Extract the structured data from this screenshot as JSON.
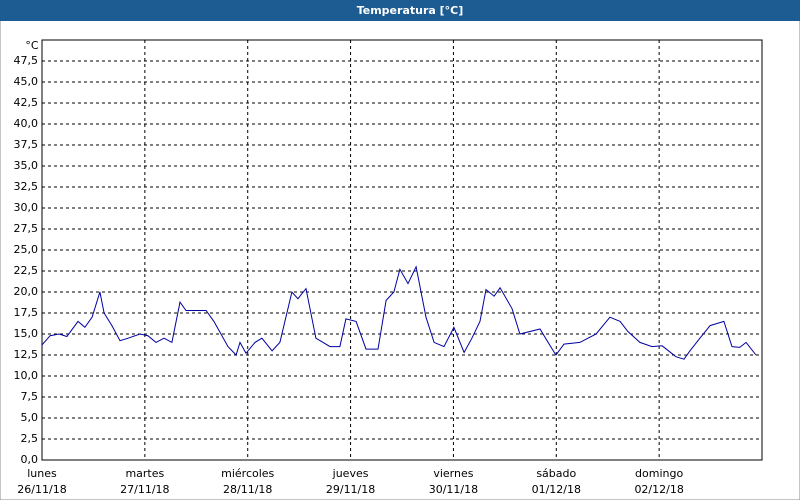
{
  "chart_data": {
    "type": "line",
    "title": "Temperatura [°C]",
    "y_label": "°C",
    "color": "#0000a0",
    "grid": true,
    "xlim": [
      0,
      168
    ],
    "ylim": [
      0,
      50
    ],
    "xticks": [
      {
        "value": 0,
        "label": "lunes",
        "date": "26/11/18"
      },
      {
        "value": 24,
        "label": "martes",
        "date": "27/11/18"
      },
      {
        "value": 48,
        "label": "miércoles",
        "date": "28/11/18"
      },
      {
        "value": 72,
        "label": "jueves",
        "date": "29/11/18"
      },
      {
        "value": 96,
        "label": "viernes",
        "date": "30/11/18"
      },
      {
        "value": 120,
        "label": "sábado",
        "date": "01/12/18"
      },
      {
        "value": 144,
        "label": "domingo",
        "date": "02/12/18"
      }
    ],
    "yticks": [
      {
        "value": 0,
        "label": "0,0"
      },
      {
        "value": 2.5,
        "label": "2,5"
      },
      {
        "value": 5,
        "label": "5,0"
      },
      {
        "value": 7.5,
        "label": "7,5"
      },
      {
        "value": 10,
        "label": "10,0"
      },
      {
        "value": 12.5,
        "label": "12,5"
      },
      {
        "value": 15,
        "label": "15,0"
      },
      {
        "value": 17.5,
        "label": "17,5"
      },
      {
        "value": 20,
        "label": "20,0"
      },
      {
        "value": 22.5,
        "label": "22,5"
      },
      {
        "value": 25,
        "label": "25,0"
      },
      {
        "value": 27.5,
        "label": "27,5"
      },
      {
        "value": 30,
        "label": "30,0"
      },
      {
        "value": 32.5,
        "label": "32,5"
      },
      {
        "value": 35,
        "label": "35,0"
      },
      {
        "value": 37.5,
        "label": "37,5"
      },
      {
        "value": 40,
        "label": "40,0"
      },
      {
        "value": 42.5,
        "label": "42,5"
      },
      {
        "value": 45,
        "label": "45,0"
      },
      {
        "value": 47.5,
        "label": "47,5"
      }
    ],
    "x": [
      0,
      1.9,
      4,
      5.8,
      8.4,
      10,
      11.7,
      13.5,
      14.5,
      16.3,
      18.2,
      20.1,
      22.9,
      24.7,
      26.6,
      28.5,
      30.3,
      32.2,
      33.6,
      38.3,
      40.1,
      43.4,
      45.3,
      46.2,
      47.6,
      49.7,
      51.3,
      53.7,
      55.5,
      58.3,
      59.7,
      61.6,
      63.9,
      67.2,
      69.5,
      70.9,
      73.3,
      75.6,
      78.4,
      80.3,
      82.1,
      83.5,
      85.4,
      87.3,
      89.6,
      91.5,
      93.8,
      96.1,
      98.5,
      100.3,
      102.2,
      103.6,
      105.5,
      106.9,
      109.7,
      111.5,
      116.2,
      118.1,
      119.9,
      121.8,
      125.5,
      129.3,
      132.5,
      134.9,
      136.7,
      139.5,
      142.3,
      144.7,
      147.9,
      149.8,
      151.2,
      153.5,
      155.9,
      159.1,
      161,
      162.8,
      164.3,
      166.6
    ],
    "values": [
      13.7,
      14.8,
      15,
      14.7,
      16.5,
      15.8,
      17,
      20,
      17.5,
      16,
      14.2,
      14.5,
      15,
      14.8,
      14,
      14.5,
      14,
      18.8,
      17.8,
      17.8,
      16.5,
      13.5,
      12.5,
      14,
      12.7,
      14,
      14.5,
      13,
      14,
      20,
      19.2,
      20.4,
      14.5,
      13.5,
      13.5,
      16.8,
      16.5,
      13.2,
      13.2,
      19,
      20,
      22.7,
      21,
      23,
      17,
      14,
      13.5,
      15.8,
      12.8,
      14.5,
      16.5,
      20.3,
      19.5,
      20.5,
      18,
      15,
      15.6,
      14,
      12.5,
      13.8,
      14,
      15,
      17,
      16.5,
      15.3,
      14,
      13.5,
      13.6,
      12.3,
      12,
      13,
      14.5,
      16,
      16.5,
      13.5,
      13.4,
      14,
      12.5
    ]
  }
}
